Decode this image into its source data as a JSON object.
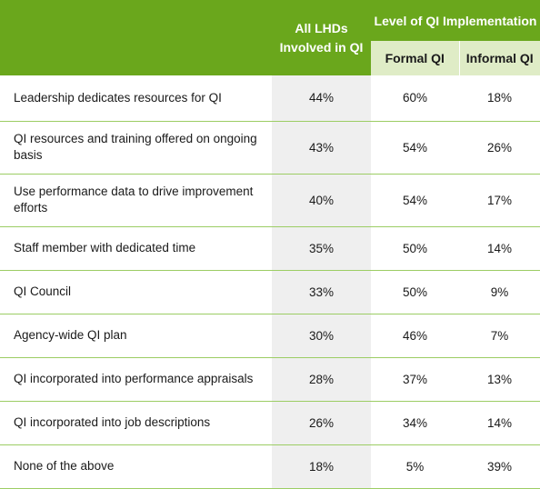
{
  "header": {
    "all_lhds": "All LHDs Involved in QI",
    "level": "Level of QI Implementation",
    "formal": "Formal QI",
    "informal": "Informal QI"
  },
  "rows": [
    {
      "label": "Leadership dedicates resources for QI",
      "all": "44%",
      "formal": "60%",
      "informal": "18%"
    },
    {
      "label": "QI resources and training offered on ongoing basis",
      "all": "43%",
      "formal": "54%",
      "informal": "26%"
    },
    {
      "label": "Use performance data to drive improvement efforts",
      "all": "40%",
      "formal": "54%",
      "informal": "17%"
    },
    {
      "label": "Staff member with dedicated time",
      "all": "35%",
      "formal": "50%",
      "informal": "14%"
    },
    {
      "label": "QI Council",
      "all": "33%",
      "formal": "50%",
      "informal": "9%"
    },
    {
      "label": "Agency-wide QI plan",
      "all": "30%",
      "formal": "46%",
      "informal": "7%"
    },
    {
      "label": "QI incorporated into performance appraisals",
      "all": "28%",
      "formal": "37%",
      "informal": "13%"
    },
    {
      "label": "QI incorporated into job descriptions",
      "all": "26%",
      "formal": "34%",
      "informal": "14%"
    },
    {
      "label": "None of the above",
      "all": "18%",
      "formal": "5%",
      "informal": "39%"
    }
  ],
  "colors": {
    "header_green": "#6aa71c",
    "subheader_light_green": "#dfecc6",
    "row_divider": "#9ccd64",
    "all_column_shade": "#efefef"
  }
}
